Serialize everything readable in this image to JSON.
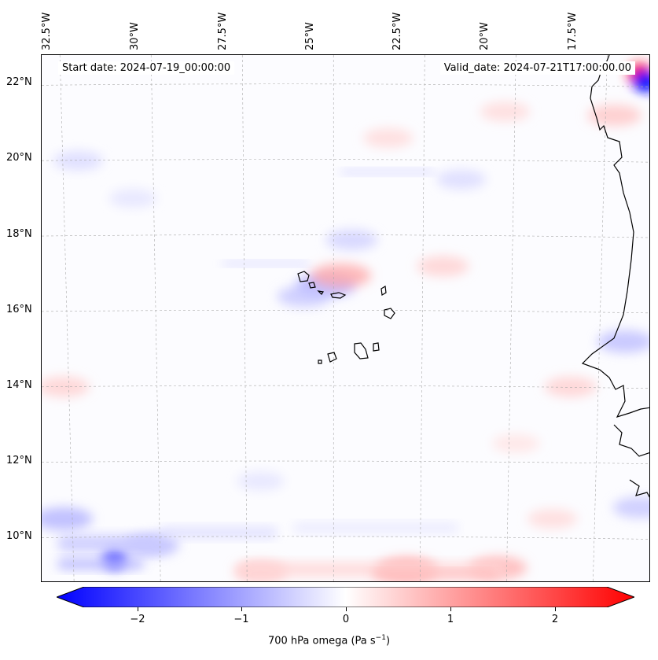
{
  "header": {
    "start_date": "Start date: 2024-07-19_00:00:00",
    "valid_date": "Valid_date: 2024-07-21T17:00:00.00"
  },
  "axes": {
    "lon_labels": [
      "32.5°W",
      "30°W",
      "27.5°W",
      "25°W",
      "22.5°W",
      "20°W",
      "17.5°W"
    ],
    "lat_labels": [
      "22°N",
      "20°N",
      "18°N",
      "16°N",
      "14°N",
      "12°N",
      "10°N"
    ]
  },
  "colorbar": {
    "label_main": "700 hPa omega (Pa s",
    "label_sup": "−1",
    "label_end": ")",
    "ticks": [
      "−2",
      "−1",
      "0",
      "1",
      "2"
    ],
    "min": -2.7,
    "max": 2.7,
    "neg_color": "#0000ff",
    "pos_color": "#ff0000"
  },
  "field": {
    "variable": "700 hPa omega",
    "units": "Pa s-1",
    "extent": {
      "lon_min": -33.0,
      "lon_max": -16.3,
      "lat_min": 8.8,
      "lat_max": 22.8
    },
    "features": [
      {
        "lon": -16.6,
        "lat": 22.3,
        "value": 2.4
      },
      {
        "lon": -16.45,
        "lat": 22.1,
        "value": -2.5
      },
      {
        "lon": -31.0,
        "lat": 9.45,
        "value": -1.8
      },
      {
        "lon": -32.4,
        "lat": 10.5,
        "value": -0.8
      },
      {
        "lon": -30.0,
        "lat": 9.8,
        "value": -0.7
      },
      {
        "lon": -27.0,
        "lat": 9.1,
        "value": 0.6
      },
      {
        "lon": -23.0,
        "lat": 9.15,
        "value": 1.0
      },
      {
        "lon": -20.5,
        "lat": 9.2,
        "value": 0.8
      },
      {
        "lon": -25.2,
        "lat": 16.7,
        "value": -0.9
      },
      {
        "lon": -24.8,
        "lat": 16.95,
        "value": 0.9
      },
      {
        "lon": -25.8,
        "lat": 16.4,
        "value": -0.6
      },
      {
        "lon": -22.0,
        "lat": 17.2,
        "value": 0.5
      },
      {
        "lon": -24.5,
        "lat": 17.9,
        "value": -0.5
      },
      {
        "lon": -32.4,
        "lat": 14.0,
        "value": 0.5
      },
      {
        "lon": -17.0,
        "lat": 15.2,
        "value": -0.7
      },
      {
        "lon": -18.5,
        "lat": 14.0,
        "value": 0.5
      },
      {
        "lon": -23.5,
        "lat": 20.6,
        "value": 0.4
      },
      {
        "lon": -20.3,
        "lat": 21.3,
        "value": 0.4
      },
      {
        "lon": -17.3,
        "lat": 21.2,
        "value": 0.6
      },
      {
        "lon": -19.0,
        "lat": 10.5,
        "value": 0.4
      },
      {
        "lon": -16.6,
        "lat": 10.8,
        "value": -0.6
      },
      {
        "lon": -32.0,
        "lat": 20.0,
        "value": -0.4
      },
      {
        "lon": -30.5,
        "lat": 19.0,
        "value": -0.3
      },
      {
        "lon": -21.5,
        "lat": 19.5,
        "value": -0.4
      },
      {
        "lon": -27.0,
        "lat": 11.5,
        "value": -0.3
      },
      {
        "lon": -20.0,
        "lat": 12.5,
        "value": 0.3
      }
    ]
  }
}
